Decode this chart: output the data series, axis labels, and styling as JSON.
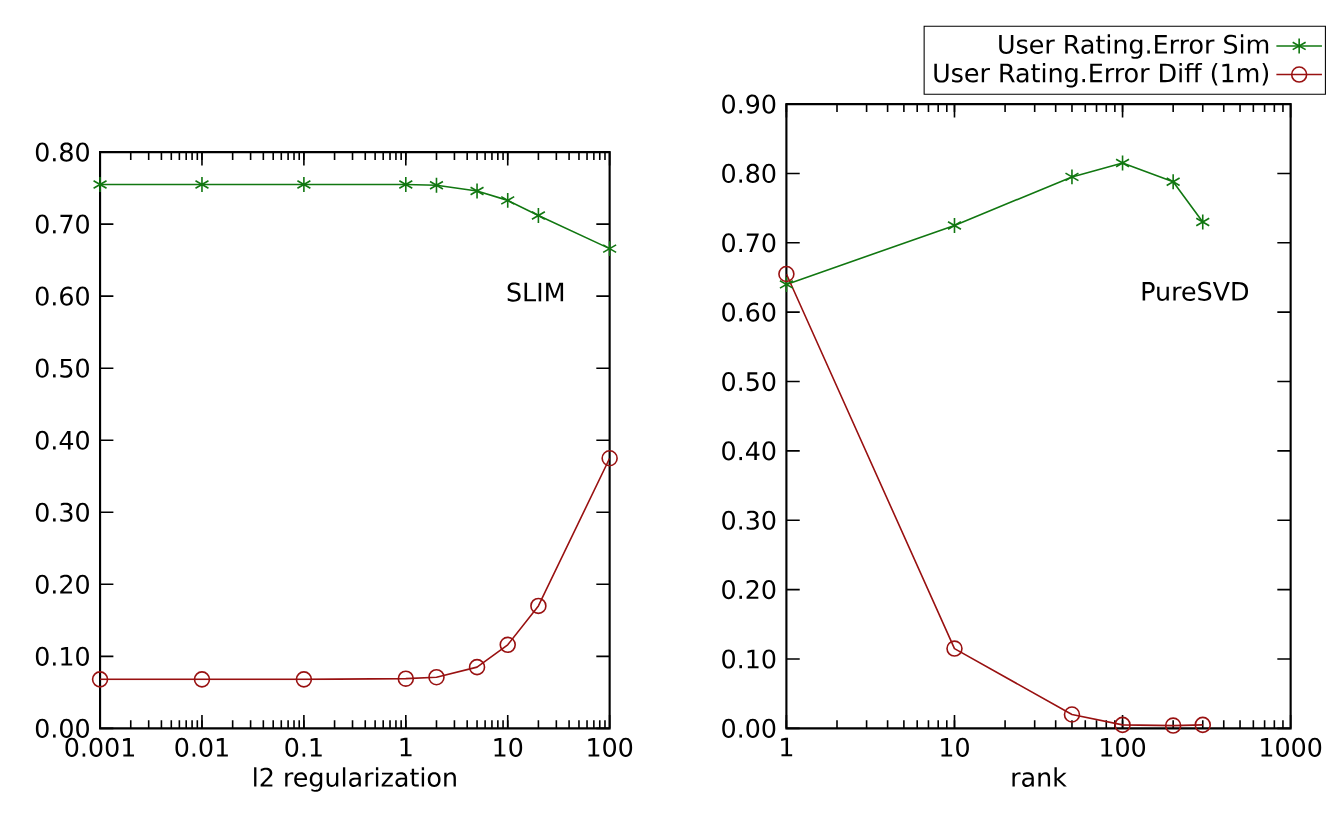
{
  "chart_data": [
    {
      "type": "line",
      "xlabel": "l2 regularization",
      "log": "x",
      "annotations": [
        "SLIM"
      ],
      "xlim": [
        0.001,
        100
      ],
      "xticks": [
        0.001,
        0.01,
        0.1,
        1,
        10,
        100
      ],
      "ylim": [
        0,
        0.8
      ],
      "yticks": [
        {
          "value": 0,
          "label": "0.00"
        },
        {
          "value": 0.1,
          "label": "0.10"
        },
        {
          "value": 0.2,
          "label": "0.20"
        },
        {
          "value": 0.3,
          "label": "0.30"
        },
        {
          "value": 0.4,
          "label": "0.40"
        },
        {
          "value": 0.5,
          "label": "0.50"
        },
        {
          "value": 0.6,
          "label": "0.60"
        },
        {
          "value": 0.7,
          "label": "0.70"
        },
        {
          "value": 0.8,
          "label": "0.80"
        }
      ],
      "x": [
        0.001,
        0.01,
        0.1,
        1,
        2,
        5,
        10,
        20,
        100
      ],
      "series": [
        {
          "color": "#117711",
          "marker": "cross",
          "values": [
            0.755,
            0.755,
            0.755,
            0.755,
            0.754,
            0.746,
            0.733,
            0.712,
            0.666
          ]
        },
        {
          "color": "#991111",
          "marker": "circle",
          "values": [
            0.068,
            0.068,
            0.068,
            0.069,
            0.071,
            0.085,
            0.116,
            0.17,
            0.375
          ]
        }
      ]
    },
    {
      "type": "line",
      "xlabel": "rank",
      "log": "x",
      "annotations": [
        "PureSVD"
      ],
      "legend": "top",
      "xlim": [
        1,
        1000
      ],
      "xticks": [
        1,
        10,
        100,
        1000
      ],
      "ylim": [
        0,
        0.9
      ],
      "yticks": [
        {
          "value": 0,
          "label": "0.00"
        },
        {
          "value": 0.1,
          "label": "0.10"
        },
        {
          "value": 0.2,
          "label": "0.20"
        },
        {
          "value": 0.3,
          "label": "0.30"
        },
        {
          "value": 0.4,
          "label": "0.40"
        },
        {
          "value": 0.5,
          "label": "0.50"
        },
        {
          "value": 0.6,
          "label": "0.60"
        },
        {
          "value": 0.7,
          "label": "0.70"
        },
        {
          "value": 0.8,
          "label": "0.80"
        },
        {
          "value": 0.9,
          "label": "0.90"
        }
      ],
      "x": [
        1,
        10,
        50,
        100,
        200,
        300
      ],
      "series": [
        {
          "name": "User Rating.Error Sim",
          "color": "#117711",
          "marker": "cross",
          "values": [
            0.64,
            0.725,
            0.795,
            0.815,
            0.788,
            0.73
          ]
        },
        {
          "name": "User Rating.Error Diff (1m)",
          "color": "#991111",
          "marker": "circle",
          "values": [
            0.655,
            0.115,
            0.02,
            0.005,
            0.004,
            0.005
          ]
        }
      ]
    }
  ]
}
